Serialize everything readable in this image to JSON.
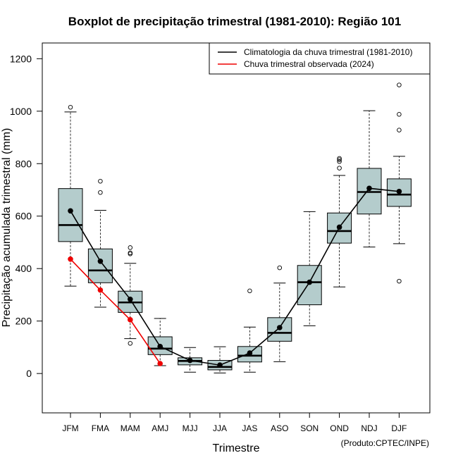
{
  "chart_data": {
    "type": "boxplot",
    "title": "Boxplot de precipitação trimestral (1981-2010): Região 101",
    "xlabel": "Trimestre",
    "ylabel": "Precipitação acumulada trimestral (mm)",
    "credit": "(Produto:CPTEC/INPE)",
    "categories": [
      "JFM",
      "FMA",
      "MAM",
      "AMJ",
      "MJJ",
      "JJA",
      "JAS",
      "ASO",
      "SON",
      "OND",
      "NDJ",
      "DJF"
    ],
    "ylim": [
      -150,
      1260
    ],
    "yticks": [
      0,
      200,
      400,
      600,
      800,
      1000,
      1200
    ],
    "boxes": [
      {
        "low": 333,
        "q1": 503,
        "median": 566,
        "q3": 705,
        "high": 997,
        "outliers": [
          1015
        ]
      },
      {
        "low": 253,
        "q1": 346,
        "median": 393,
        "q3": 475,
        "high": 622,
        "outliers": [
          690,
          733
        ]
      },
      {
        "low": 133,
        "q1": 233,
        "median": 271,
        "q3": 314,
        "high": 420,
        "outliers": [
          115,
          456,
          460,
          480
        ]
      },
      {
        "low": 30,
        "q1": 72,
        "median": 95,
        "q3": 140,
        "high": 210,
        "outliers": []
      },
      {
        "low": 5,
        "q1": 33,
        "median": 48,
        "q3": 60,
        "high": 99,
        "outliers": []
      },
      {
        "low": 2,
        "q1": 14,
        "median": 25,
        "q3": 50,
        "high": 102,
        "outliers": []
      },
      {
        "low": 5,
        "q1": 44,
        "median": 68,
        "q3": 103,
        "high": 177,
        "outliers": [
          315
        ]
      },
      {
        "low": 45,
        "q1": 123,
        "median": 155,
        "q3": 213,
        "high": 345,
        "outliers": [
          403
        ]
      },
      {
        "low": 182,
        "q1": 262,
        "median": 348,
        "q3": 412,
        "high": 617,
        "outliers": []
      },
      {
        "low": 330,
        "q1": 497,
        "median": 543,
        "q3": 612,
        "high": 755,
        "outliers": [
          783,
          808,
          815,
          820
        ]
      },
      {
        "low": 482,
        "q1": 608,
        "median": 692,
        "q3": 782,
        "high": 1002,
        "outliers": []
      },
      {
        "low": 495,
        "q1": 637,
        "median": 682,
        "q3": 742,
        "high": 828,
        "outliers": [
          352,
          928,
          988,
          1100
        ]
      }
    ],
    "series": [
      {
        "name": "Climatologia da chuva trimestral (1981-2010)",
        "color": "#000000",
        "values": [
          620,
          428,
          283,
          103,
          50,
          32,
          78,
          175,
          348,
          558,
          706,
          694
        ]
      },
      {
        "name": "Chuva trimestral observada (2024)",
        "color": "#ee0000",
        "values": [
          436,
          318,
          205,
          38,
          null,
          null,
          null,
          null,
          null,
          null,
          null,
          null
        ]
      }
    ],
    "box_fill": "#b4cccc",
    "legend_position": "top-right"
  }
}
